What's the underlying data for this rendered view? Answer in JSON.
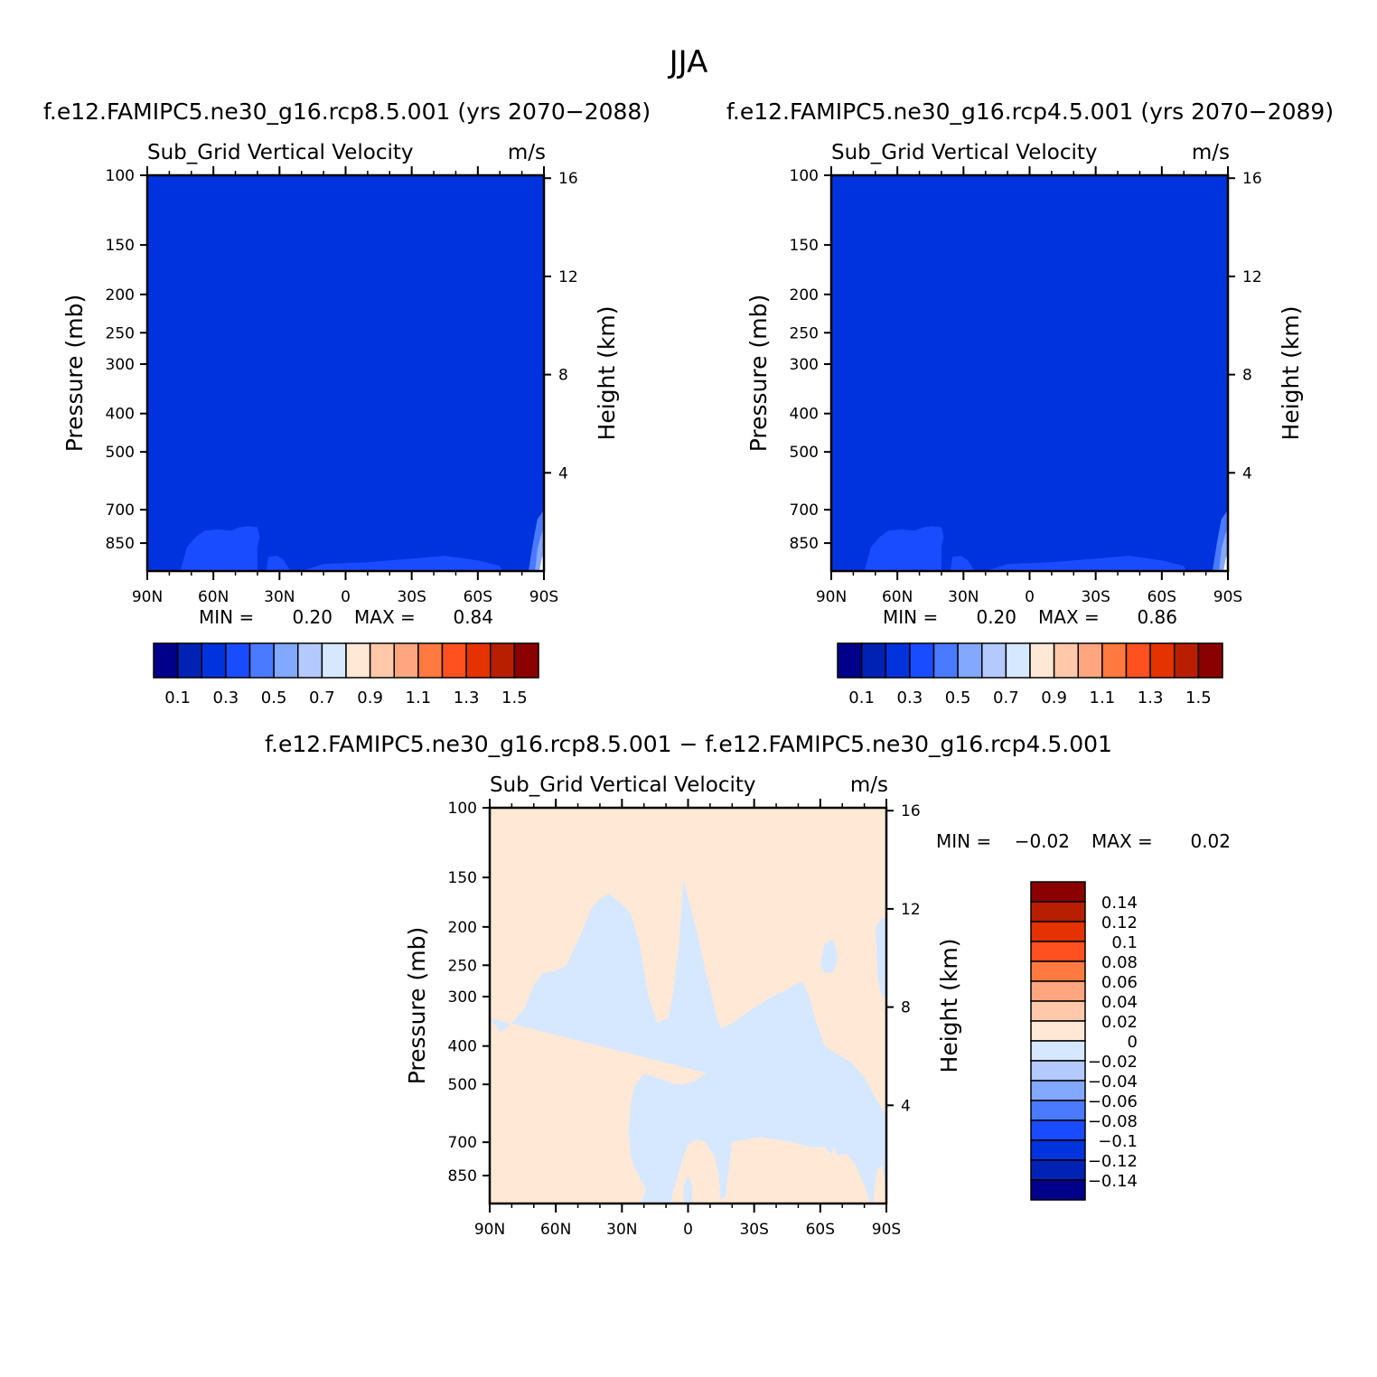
{
  "figure_title": "JJA",
  "chart_data": [
    {
      "type": "heatmap",
      "case_title": "f.e12.FAMIPC5.ne30_g16.rcp8.5.001 (yrs 2070-2088)",
      "subtitle": "Sub_Grid Vertical Velocity",
      "units": "m/s",
      "ylabel": "Pressure (mb)",
      "ylabel_right": "Height (km)",
      "x_ticks": [
        "90N",
        "60N",
        "30N",
        "0",
        "30S",
        "60S",
        "90S"
      ],
      "y_ticks": [
        100,
        150,
        200,
        250,
        300,
        400,
        500,
        700,
        850
      ],
      "y_ticks_right": [
        16,
        12,
        8,
        4
      ],
      "ylim": [
        1000,
        100
      ],
      "y_scale": "log",
      "xlim": [
        90,
        -90
      ],
      "min_label": "MIN =",
      "min_value": "0.20",
      "max_label": "MAX =",
      "max_value": "0.84",
      "levels": [
        0.1,
        0.2,
        0.3,
        0.4,
        0.5,
        0.6,
        0.7,
        0.8,
        0.9,
        1.0,
        1.1,
        1.2,
        1.3,
        1.4,
        1.5
      ],
      "colorbar_labels": [
        "0.1",
        "0.3",
        "0.5",
        "0.7",
        "0.9",
        "1.1",
        "1.3",
        "1.5"
      ],
      "field_description": "uniform 0.2-0.3 everywhere; 0.3-0.4 in thin layer near surface 80N-40N and 20N-70S; 0.4-0.8 near 85S-90S surface"
    },
    {
      "type": "heatmap",
      "case_title": "f.e12.FAMIPC5.ne30_g16.rcp4.5.001 (yrs 2070-2089)",
      "subtitle": "Sub_Grid Vertical Velocity",
      "units": "m/s",
      "ylabel": "Pressure (mb)",
      "ylabel_right": "Height (km)",
      "x_ticks": [
        "90N",
        "60N",
        "30N",
        "0",
        "30S",
        "60S",
        "90S"
      ],
      "y_ticks": [
        100,
        150,
        200,
        250,
        300,
        400,
        500,
        700,
        850
      ],
      "y_ticks_right": [
        16,
        12,
        8,
        4
      ],
      "ylim": [
        1000,
        100
      ],
      "y_scale": "log",
      "xlim": [
        90,
        -90
      ],
      "min_label": "MIN =",
      "min_value": "0.20",
      "max_label": "MAX =",
      "max_value": "0.86",
      "levels": [
        0.1,
        0.2,
        0.3,
        0.4,
        0.5,
        0.6,
        0.7,
        0.8,
        0.9,
        1.0,
        1.1,
        1.2,
        1.3,
        1.4,
        1.5
      ],
      "colorbar_labels": [
        "0.1",
        "0.3",
        "0.5",
        "0.7",
        "0.9",
        "1.1",
        "1.3",
        "1.5"
      ],
      "field_description": "uniform 0.2-0.3 everywhere; 0.3-0.4 in thin layer near surface 80N-40N and 20N-70S; 0.4-0.8 near 85S-90S surface"
    },
    {
      "type": "heatmap",
      "case_title": "f.e12.FAMIPC5.ne30_g16.rcp8.5.001 - f.e12.FAMIPC5.ne30_g16.rcp4.5.001",
      "subtitle": "Sub_Grid Vertical Velocity",
      "units": "m/s",
      "ylabel": "Pressure (mb)",
      "ylabel_right": "Height (km)",
      "x_ticks": [
        "90N",
        "60N",
        "30N",
        "0",
        "30S",
        "60S",
        "90S"
      ],
      "y_ticks": [
        100,
        150,
        200,
        250,
        300,
        400,
        500,
        700,
        850
      ],
      "y_ticks_right": [
        16,
        12,
        8,
        4
      ],
      "ylim": [
        1000,
        100
      ],
      "y_scale": "log",
      "xlim": [
        90,
        -90
      ],
      "min_label": "MIN =",
      "min_value": "-0.02",
      "max_label": "MAX =",
      "max_value": "0.02",
      "levels": [
        -0.14,
        -0.12,
        -0.1,
        -0.08,
        -0.06,
        -0.04,
        -0.02,
        0,
        0.02,
        0.04,
        0.06,
        0.08,
        0.1,
        0.12,
        0.14
      ],
      "colorbar_labels": [
        "0.14",
        "0.12",
        "0.1",
        "0.08",
        "0.06",
        "0.04",
        "0.02",
        "0",
        "-0.02",
        "-0.04",
        "-0.06",
        "-0.08",
        "-0.1",
        "-0.12",
        "-0.14"
      ],
      "field_description": "0 to 0.02 in upper troposphere and lower subtropics; -0.02 to 0 band through mid troposphere and tropical towers"
    }
  ],
  "colors": {
    "palette": [
      "#00008b",
      "#0022b4",
      "#0033dd",
      "#1a4cff",
      "#4a7aff",
      "#83a8ff",
      "#b4caff",
      "#d6e8ff",
      "#ffe8d6",
      "#ffc8aa",
      "#ffa680",
      "#ff7a40",
      "#ff5020",
      "#e43200",
      "#b81e00",
      "#8b0000"
    ],
    "base_fill": "#0033dd",
    "surface_fill": "#1a4cff",
    "pole_fill_a": "#4a7aff",
    "pole_fill_b": "#83a8ff",
    "pole_fill_c": "#ffffff",
    "diff_positive": "#ffe8d6",
    "diff_negative": "#d6e8ff"
  }
}
